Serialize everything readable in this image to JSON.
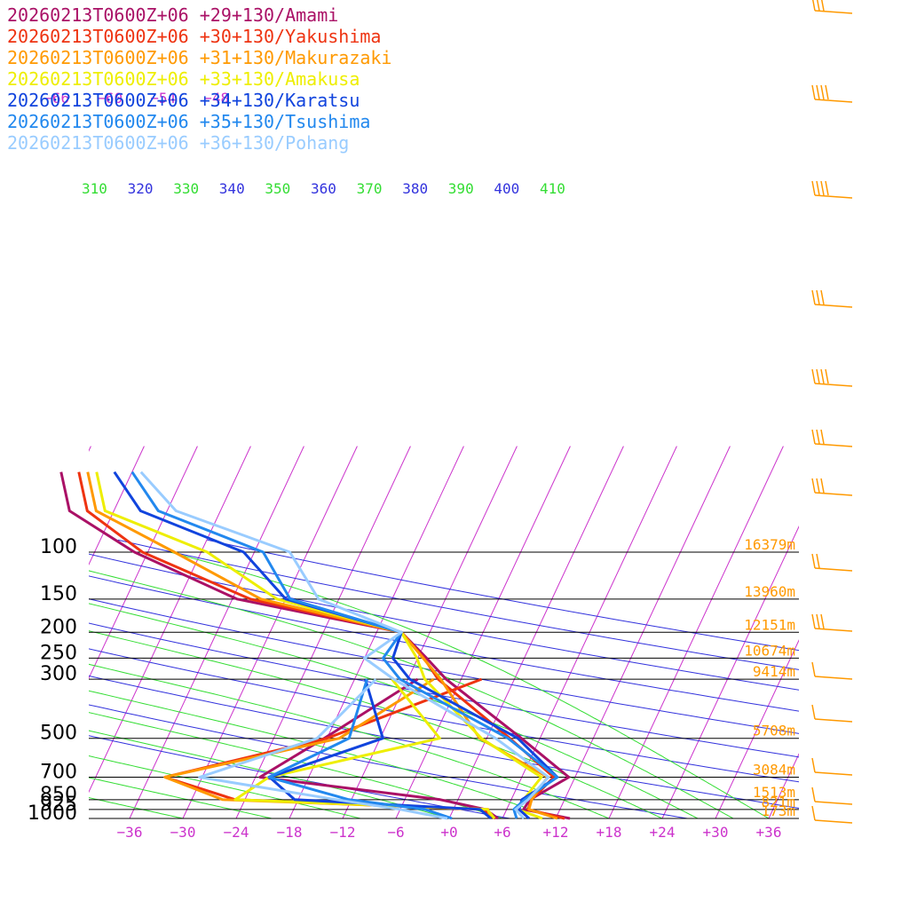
{
  "chart_data": {
    "type": "line",
    "title": "",
    "xlabel": "",
    "ylabel": "",
    "grid": true,
    "legend_placement": "top-left",
    "colors": {
      "isotherm": "#cc33cc",
      "dry_adiabat": "#3333dd",
      "moist_adiabat": "#33dd33",
      "height_label": "#ff9900",
      "temp_tick": "#cc33cc",
      "wind": "#ff9900"
    },
    "pressure_levels": [
      {
        "p": 100,
        "label": "100",
        "height": "16379m"
      },
      {
        "p": 150,
        "label": "150",
        "height": "13960m"
      },
      {
        "p": 200,
        "label": "200",
        "height": "12151m"
      },
      {
        "p": 250,
        "label": "250",
        "height": "10674m"
      },
      {
        "p": 300,
        "label": "300",
        "height": "9414m"
      },
      {
        "p": 500,
        "label": "500",
        "height": "5708m"
      },
      {
        "p": 700,
        "label": "700",
        "height": "3084m"
      },
      {
        "p": 850,
        "label": "850",
        "height": "1513m"
      },
      {
        "p": 925,
        "label": "925",
        "height": "821m"
      },
      {
        "p": 1000,
        "label": "1000",
        "height": "173m"
      }
    ],
    "x_ticks": [
      {
        "t": -36,
        "label": "−36"
      },
      {
        "t": -30,
        "label": "−30"
      },
      {
        "t": -24,
        "label": "−24"
      },
      {
        "t": -18,
        "label": "−18"
      },
      {
        "t": -12,
        "label": "−12"
      },
      {
        "t": -6,
        "label": "−6"
      },
      {
        "t": 0,
        "label": "+0"
      },
      {
        "t": 6,
        "label": "+6"
      },
      {
        "t": 12,
        "label": "+12"
      },
      {
        "t": 18,
        "label": "+18"
      },
      {
        "t": 24,
        "label": "+24"
      },
      {
        "t": 30,
        "label": "+30"
      },
      {
        "t": 36,
        "label": "+36"
      }
    ],
    "upper_temp_labels": [
      {
        "t": -66,
        "label": "−66"
      },
      {
        "t": -60,
        "label": "−60"
      },
      {
        "t": -54,
        "label": "−54"
      },
      {
        "t": -48,
        "label": "−48"
      }
    ],
    "theta_labels": [
      {
        "theta": 310,
        "label": "310",
        "kind": "moist"
      },
      {
        "theta": 320,
        "label": "320",
        "kind": "dry"
      },
      {
        "theta": 330,
        "label": "330",
        "kind": "moist"
      },
      {
        "theta": 340,
        "label": "340",
        "kind": "dry"
      },
      {
        "theta": 350,
        "label": "350",
        "kind": "moist"
      },
      {
        "theta": 360,
        "label": "360",
        "kind": "dry"
      },
      {
        "theta": 370,
        "label": "370",
        "kind": "moist"
      },
      {
        "theta": 380,
        "label": "380",
        "kind": "dry"
      },
      {
        "theta": 390,
        "label": "390",
        "kind": "moist"
      },
      {
        "theta": 400,
        "label": "400",
        "kind": "dry"
      },
      {
        "theta": 410,
        "label": "410",
        "kind": "moist"
      }
    ],
    "series": [
      {
        "name": "20260213T0600Z+06 +29+130/Amami",
        "color": "#aa1166",
        "temp": [
          [
            1000,
            13.6
          ],
          [
            925,
            7.9
          ],
          [
            850,
            8.1
          ],
          [
            700,
            11.3
          ],
          [
            500,
            3.9
          ],
          [
            300,
            -7.7
          ],
          [
            250,
            -11.0
          ],
          [
            200,
            -15.2
          ],
          [
            150,
            -35.5
          ],
          [
            100,
            -49.5
          ],
          [
            70,
            -59
          ],
          [
            50,
            -62
          ]
        ],
        "dewpoint": [
          [
            1000,
            5.5
          ],
          [
            925,
            3.6
          ],
          [
            850,
            -2.0
          ],
          [
            700,
            -23.5
          ],
          [
            500,
            -18.3
          ],
          [
            300,
            -10.9
          ]
        ]
      },
      {
        "name": "20260213T0600Z+06 +30+130/Yakushima",
        "color": "#ee3311",
        "temp": [
          [
            1000,
            13.0
          ],
          [
            925,
            8.4
          ],
          [
            850,
            8.3
          ],
          [
            700,
            9.6
          ],
          [
            500,
            2.6
          ],
          [
            300,
            -8.6
          ],
          [
            250,
            -11.3
          ],
          [
            200,
            -15.2
          ],
          [
            150,
            -34.0
          ],
          [
            100,
            -48.6
          ],
          [
            70,
            -57
          ],
          [
            50,
            -60
          ]
        ],
        "dewpoint": [
          [
            1000,
            5.2
          ],
          [
            925,
            3.1
          ],
          [
            850,
            -25.1
          ],
          [
            700,
            -34.2
          ],
          [
            500,
            -18.0
          ],
          [
            300,
            -3.7
          ]
        ]
      },
      {
        "name": "20260213T0600Z+06 +31+130/Makurazaki",
        "color": "#ff9900",
        "temp": [
          [
            1000,
            12.2
          ],
          [
            925,
            8.5
          ],
          [
            850,
            8.3
          ],
          [
            700,
            8.9
          ],
          [
            500,
            -0.8
          ],
          [
            300,
            -8.3
          ],
          [
            250,
            -11.4
          ],
          [
            200,
            -15.2
          ],
          [
            150,
            -32.8
          ],
          [
            100,
            -45.0
          ],
          [
            70,
            -56
          ],
          [
            50,
            -59
          ]
        ],
        "dewpoint": [
          [
            1000,
            4.6
          ],
          [
            925,
            3.9
          ],
          [
            850,
            -26.5
          ],
          [
            700,
            -34.2
          ],
          [
            500,
            -16.6
          ],
          [
            300,
            -9.1
          ]
        ]
      },
      {
        "name": "20260213T0600Z+06 +33+130/Amakusa",
        "color": "#eeee00",
        "temp": [
          [
            1000,
            10.5
          ],
          [
            925,
            7.2
          ],
          [
            850,
            7.4
          ],
          [
            700,
            8.2
          ],
          [
            500,
            -0.6
          ],
          [
            300,
            -10.1
          ],
          [
            250,
            -12.1
          ],
          [
            200,
            -15.2
          ],
          [
            150,
            -31.0
          ],
          [
            100,
            -41.3
          ],
          [
            70,
            -55
          ],
          [
            50,
            -58
          ]
        ],
        "dewpoint": [
          [
            1000,
            5.1
          ],
          [
            925,
            3.8
          ],
          [
            850,
            -25.1
          ],
          [
            700,
            -22.5
          ],
          [
            500,
            -5.3
          ],
          [
            300,
            -13.8
          ]
        ]
      },
      {
        "name": "20260213T0600Z+06 +34+130/Karatsu",
        "color": "#1144dd",
        "temp": [
          [
            1000,
            9.0
          ],
          [
            925,
            7.4
          ],
          [
            850,
            7.2
          ],
          [
            700,
            10.0
          ],
          [
            500,
            3.5
          ],
          [
            300,
            -11.8
          ],
          [
            250,
            -14.8
          ],
          [
            200,
            -15.2
          ],
          [
            150,
            -30.0
          ],
          [
            100,
            -37.2
          ],
          [
            70,
            -51
          ],
          [
            50,
            -56
          ]
        ],
        "dewpoint": [
          [
            1000,
            4.7
          ],
          [
            925,
            3.0
          ],
          [
            850,
            -18.4
          ],
          [
            700,
            -22.4
          ],
          [
            500,
            -11.7
          ],
          [
            300,
            -16.8
          ]
        ]
      },
      {
        "name": "20260213T0600Z+06 +35+130/Tsushima",
        "color": "#2288ee",
        "temp": [
          [
            1000,
            7.6
          ],
          [
            925,
            6.8
          ],
          [
            850,
            7.5
          ],
          [
            700,
            10.0
          ],
          [
            500,
            2.4
          ],
          [
            300,
            -12.9
          ],
          [
            250,
            -15.9
          ],
          [
            200,
            -15.2
          ],
          [
            150,
            -29.5
          ],
          [
            100,
            -35.0
          ],
          [
            70,
            -49
          ],
          [
            50,
            -54
          ]
        ],
        "dewpoint": [
          [
            1000,
            0.3
          ],
          [
            925,
            -3.2
          ],
          [
            850,
            -12.3
          ],
          [
            700,
            -22.5
          ],
          [
            500,
            -15.5
          ],
          [
            300,
            -16.6
          ]
        ]
      },
      {
        "name": "20260213T0600Z+06 +36+130/Pohang",
        "color": "#99ccff",
        "temp": [
          [
            1000,
            8.4
          ],
          [
            925,
            7.0
          ],
          [
            850,
            7.9
          ],
          [
            700,
            9.0
          ],
          [
            500,
            1.0
          ],
          [
            300,
            -13.6
          ],
          [
            250,
            -18.0
          ],
          [
            200,
            -15.2
          ],
          [
            150,
            -26.3
          ],
          [
            100,
            -32.0
          ],
          [
            70,
            -47
          ],
          [
            50,
            -53
          ]
        ],
        "dewpoint": [
          [
            1000,
            -0.2
          ],
          [
            925,
            -6.0
          ],
          [
            850,
            -13.7
          ],
          [
            700,
            -30.3
          ],
          [
            500,
            -19.1
          ],
          [
            300,
            -15.6
          ]
        ]
      }
    ]
  }
}
